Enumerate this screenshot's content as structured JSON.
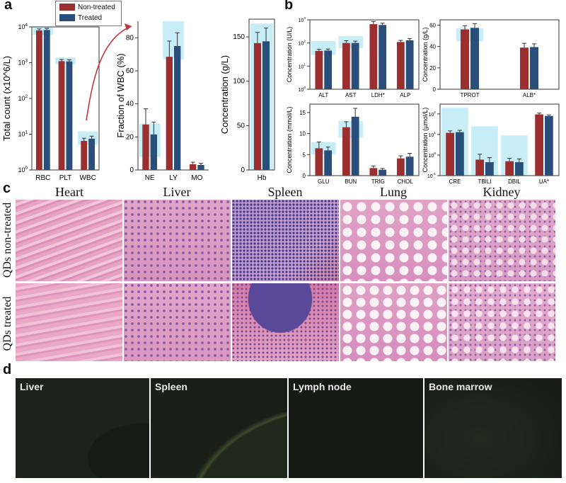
{
  "panel_labels": {
    "a": "a",
    "b": "b",
    "c": "c",
    "d": "d"
  },
  "legend": {
    "items": [
      {
        "label": "Non-treated",
        "color": "#9b2f2f"
      },
      {
        "label": "Treated",
        "color": "#2a4e7a"
      }
    ]
  },
  "colors": {
    "non_treated": "#9b2f2f",
    "treated": "#2a4e7a",
    "reference_band": "#c7eef7"
  },
  "chart_data": [
    {
      "id": "a1",
      "type": "bar",
      "scale": "log",
      "ylabel": "Total count (x10^6/L)",
      "ylim": [
        1,
        10000
      ],
      "ytick_labels": [
        "10^0",
        "10^1",
        "10^2",
        "10^3",
        "10^4"
      ],
      "categories": [
        "RBC",
        "PLT",
        "WBC"
      ],
      "series": [
        {
          "name": "Non-treated",
          "values": [
            8000,
            1100,
            6.5
          ],
          "errors": [
            800,
            130,
            1.2
          ]
        },
        {
          "name": "Treated",
          "values": [
            8200,
            1080,
            7.5
          ],
          "errors": [
            900,
            120,
            1.3
          ]
        }
      ],
      "reference_ranges": [
        [
          6000,
          10000
        ],
        [
          900,
          1400
        ],
        [
          5,
          12
        ]
      ]
    },
    {
      "id": "a2",
      "type": "bar",
      "ylabel": "Fraction of WBC (%)",
      "ylim": [
        0,
        90
      ],
      "yticks": [
        0,
        20,
        40,
        60,
        80
      ],
      "categories": [
        "NE",
        "LY",
        "MO"
      ],
      "series": [
        {
          "name": "Non-treated",
          "values": [
            27.5,
            68.5,
            3.5
          ],
          "errors": [
            9.5,
            9.5,
            1.2
          ]
        },
        {
          "name": "Treated",
          "values": [
            21.5,
            75,
            3
          ],
          "errors": [
            7.5,
            8,
            1
          ]
        }
      ],
      "reference_ranges": [
        [
          8,
          28
        ],
        [
          67,
          90
        ],
        null
      ]
    },
    {
      "id": "a3",
      "type": "bar",
      "ylabel": "Concentration (g/L)",
      "ylim": [
        0,
        170
      ],
      "yticks": [
        0,
        50,
        100,
        150
      ],
      "categories": [
        "Hb"
      ],
      "series": [
        {
          "name": "Non-treated",
          "values": [
            143
          ],
          "errors": [
            12
          ]
        },
        {
          "name": "Treated",
          "values": [
            145
          ],
          "errors": [
            15
          ]
        }
      ],
      "reference_ranges": [
        [
          0,
          165
        ]
      ]
    },
    {
      "id": "b1",
      "type": "bar",
      "scale": "log",
      "ylabel": "Concentration (U/L)",
      "ylim": [
        1,
        1000
      ],
      "ytick_labels": [
        "10^0",
        "10^1",
        "10^2",
        "10^3"
      ],
      "categories": [
        "ALT",
        "AST",
        "LDH*",
        "ALP"
      ],
      "series": [
        {
          "name": "Non-treated",
          "values": [
            45,
            100,
            650,
            110
          ],
          "errors": [
            8,
            25,
            200,
            20
          ]
        },
        {
          "name": "Treated",
          "values": [
            47,
            100,
            600,
            130
          ],
          "errors": [
            8,
            20,
            120,
            25
          ]
        }
      ],
      "reference_ranges": [
        [
          30,
          120
        ],
        [
          60,
          200
        ],
        null,
        null
      ]
    },
    {
      "id": "b2",
      "type": "bar",
      "ylabel": "Concentration (g/L)",
      "ylim": [
        0,
        65
      ],
      "yticks": [
        0,
        20,
        40,
        60
      ],
      "categories": [
        "TPROT",
        "ALB*"
      ],
      "series": [
        {
          "name": "Non-treated",
          "values": [
            56,
            39
          ],
          "errors": [
            3.5,
            4
          ]
        },
        {
          "name": "Treated",
          "values": [
            57.5,
            39.5
          ],
          "errors": [
            4,
            3
          ]
        }
      ],
      "reference_ranges": [
        [
          45,
          57
        ],
        null
      ]
    },
    {
      "id": "b3",
      "type": "bar",
      "ylabel": "Concentration (mmol/L)",
      "ylim": [
        0,
        17
      ],
      "yticks": [
        0,
        5,
        10,
        15
      ],
      "categories": [
        "GLU",
        "BUN",
        "TRIG",
        "CHOL"
      ],
      "series": [
        {
          "name": "Non-treated",
          "values": [
            6.5,
            11.5,
            1.8,
            4.1
          ],
          "errors": [
            1.5,
            1.3,
            0.5,
            0.6
          ]
        },
        {
          "name": "Treated",
          "values": [
            6.0,
            14,
            1.4,
            4.5
          ],
          "errors": [
            0.8,
            2.0,
            0.3,
            0.8
          ]
        }
      ],
      "reference_ranges": [
        [
          5,
          8
        ],
        [
          9,
          13
        ],
        null,
        null
      ]
    },
    {
      "id": "b4",
      "type": "bar",
      "scale": "log",
      "ylabel": "Concentration (µmol/L)",
      "ylim": [
        0.1,
        300
      ],
      "ytick_labels": [
        "10^-1",
        "10^0",
        "10^1",
        "10^2"
      ],
      "categories": [
        "CRE",
        "TBILI",
        "DBIL",
        "UA*"
      ],
      "series": [
        {
          "name": "Non-treated",
          "values": [
            12,
            0.6,
            0.5,
            95
          ],
          "errors": [
            3,
            0.5,
            0.2,
            15
          ]
        },
        {
          "name": "Treated",
          "values": [
            13,
            0.45,
            0.45,
            80
          ],
          "errors": [
            3,
            0.3,
            0.2,
            10
          ]
        }
      ],
      "reference_ranges": [
        [
          0.1,
          200
        ],
        [
          0.1,
          25
        ],
        [
          0.1,
          9
        ],
        null
      ]
    }
  ],
  "histology": {
    "organs": [
      "Heart",
      "Liver",
      "Spleen",
      "Lung",
      "Kidney"
    ],
    "rows": [
      "QDs non-treated",
      "QDs treated"
    ]
  },
  "fluorescence": {
    "panels": [
      "Liver",
      "Spleen",
      "Lymph node",
      "Bone marrow"
    ]
  }
}
